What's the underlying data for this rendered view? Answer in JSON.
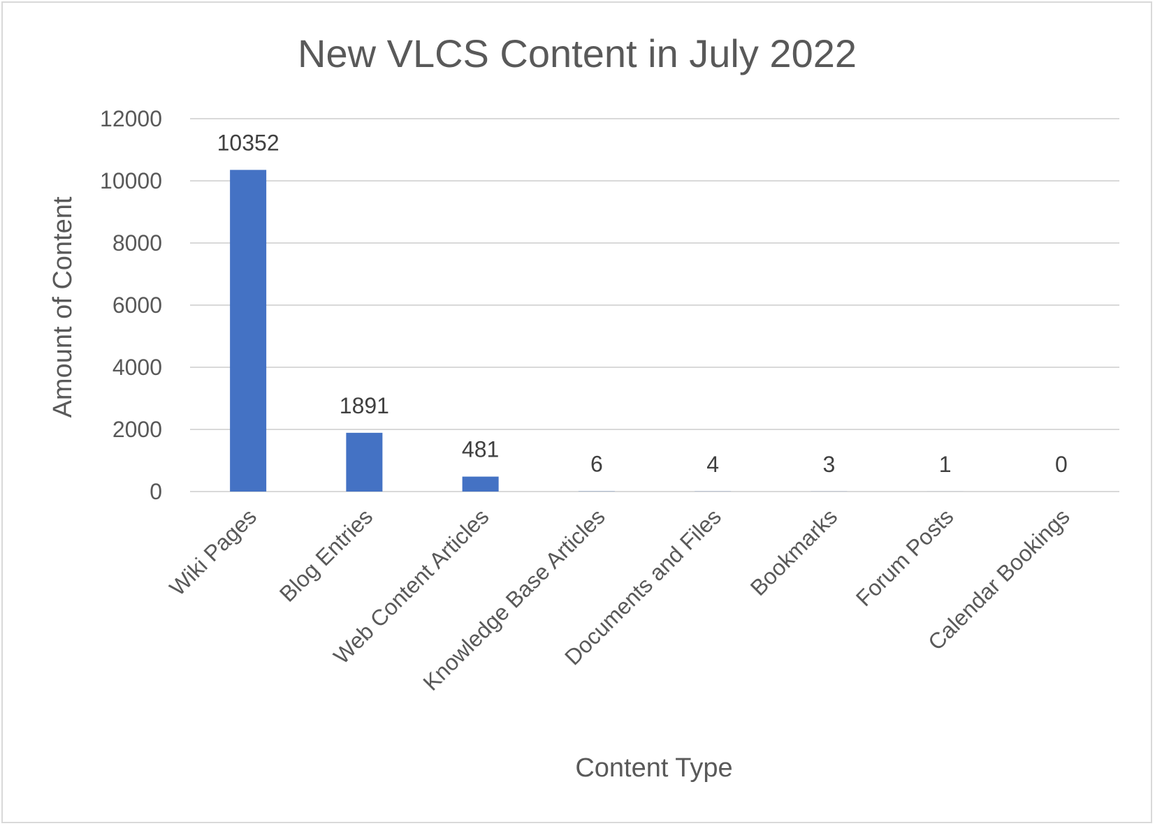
{
  "chart_data": {
    "type": "bar",
    "title": "New VLCS Content in July 2022",
    "xlabel": "Content Type",
    "ylabel": "Amount of Content",
    "categories": [
      "Wiki Pages",
      "Blog Entries",
      "Web Content Articles",
      "Knowledge Base Articles",
      "Documents and Files",
      "Bookmarks",
      "Forum Posts",
      "Calendar Bookings"
    ],
    "values": [
      10352,
      1891,
      481,
      6,
      4,
      3,
      1,
      0
    ],
    "data_labels": [
      "10352",
      "1891",
      "481",
      "6",
      "4",
      "3",
      "1",
      "0"
    ],
    "ylim": [
      0,
      12000
    ],
    "yticks": [
      0,
      2000,
      4000,
      6000,
      8000,
      10000,
      12000
    ],
    "grid": true,
    "legend": "none",
    "bar_color": "#4472c4"
  }
}
